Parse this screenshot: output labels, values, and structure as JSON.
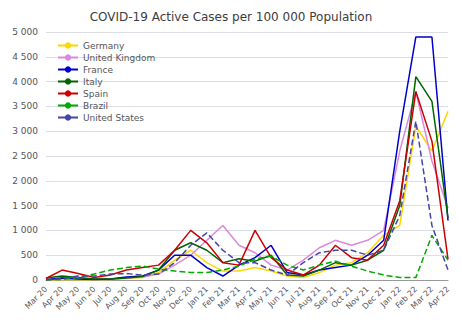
{
  "chart_data": {
    "type": "line",
    "title": "COVID-19 Active Cases per 100 000 Population",
    "categories": [
      "Mar 20",
      "Apr 20",
      "May 20",
      "Jun 20",
      "Jul 20",
      "Aug 20",
      "Sep 20",
      "Oct 20",
      "Nov 20",
      "Dec 20",
      "Jan 21",
      "Feb 21",
      "Mar 21",
      "Apr 21",
      "May 21",
      "Jun 21",
      "Jul 21",
      "Aug 21",
      "Sep 21",
      "Oct 21",
      "Nov 21",
      "Dec 21",
      "Jan 22",
      "Feb 22",
      "Mar 22",
      "Apr 22"
    ],
    "series": [
      {
        "name": "Germany",
        "color": "#FFD700",
        "line_style": "solid",
        "values": [
          2,
          5,
          5,
          5,
          10,
          30,
          50,
          150,
          400,
          600,
          350,
          180,
          180,
          250,
          180,
          80,
          50,
          150,
          300,
          350,
          550,
          900,
          1100,
          3100,
          2600,
          3400
        ]
      },
      {
        "name": "United Kingdom",
        "color": "#DD88DD",
        "line_style": "solid",
        "values": [
          10,
          50,
          30,
          15,
          20,
          40,
          60,
          120,
          300,
          500,
          800,
          1100,
          700,
          550,
          300,
          200,
          400,
          650,
          800,
          700,
          800,
          1000,
          2600,
          3800,
          2400,
          1450
        ]
      },
      {
        "name": "France",
        "color": "#0000CC",
        "line_style": "solid",
        "values": [
          5,
          40,
          20,
          10,
          20,
          60,
          80,
          200,
          500,
          500,
          250,
          80,
          300,
          450,
          700,
          150,
          100,
          200,
          250,
          300,
          500,
          800,
          3000,
          4900,
          4900,
          1200
        ]
      },
      {
        "name": "Italy",
        "color": "#006400",
        "line_style": "solid",
        "values": [
          40,
          80,
          50,
          20,
          20,
          40,
          70,
          200,
          600,
          750,
          600,
          350,
          430,
          380,
          500,
          100,
          80,
          200,
          350,
          300,
          400,
          600,
          1500,
          4100,
          3600,
          1250
        ]
      },
      {
        "name": "Spain",
        "color": "#CC0000",
        "line_style": "solid",
        "values": [
          30,
          200,
          130,
          50,
          100,
          200,
          250,
          300,
          600,
          1000,
          750,
          350,
          300,
          1000,
          450,
          200,
          100,
          300,
          700,
          450,
          400,
          700,
          1600,
          3800,
          2800,
          420
        ]
      },
      {
        "name": "Brazil",
        "color": "#00AA00",
        "line_style": "dashed",
        "values": [
          1,
          10,
          50,
          120,
          200,
          250,
          280,
          220,
          180,
          150,
          150,
          200,
          280,
          420,
          480,
          300,
          200,
          300,
          380,
          280,
          180,
          100,
          50,
          50,
          900,
          400
        ]
      },
      {
        "name": "United States",
        "color": "#4444AA",
        "line_style": "dashed",
        "values": [
          1,
          30,
          80,
          80,
          120,
          130,
          100,
          120,
          350,
          700,
          950,
          600,
          350,
          350,
          200,
          100,
          350,
          550,
          600,
          600,
          500,
          600,
          1300,
          3200,
          1100,
          200
        ]
      }
    ],
    "ylim": [
      0,
      5000
    ],
    "yticks": [
      0,
      500,
      {
        "value": 1000,
        "label": "1 000"
      },
      {
        "value": 1500,
        "label": "1 500"
      },
      {
        "value": 2000,
        "label": "2 000"
      },
      {
        "value": 2500,
        "label": "2 500"
      },
      {
        "value": 3000,
        "label": "3 000"
      },
      {
        "value": 3500,
        "label": "3 500"
      },
      {
        "value": 4000,
        "label": "4 000"
      },
      {
        "value": 4500,
        "label": "4 500"
      },
      {
        "value": 5000,
        "label": "5 000"
      }
    ],
    "grid": true,
    "legend": "upper left"
  }
}
